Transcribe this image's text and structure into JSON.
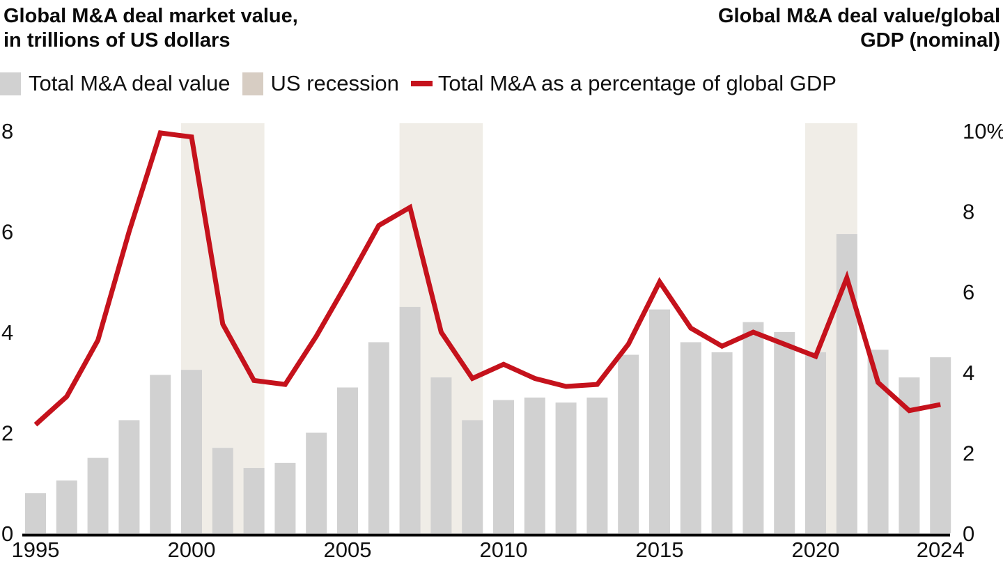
{
  "titles": {
    "left_line1": "Global M&A deal market value,",
    "left_line2": "in trillions of US dollars",
    "right_line1": "Global M&A deal value/global",
    "right_line2": "GDP (nominal)"
  },
  "legend": {
    "items": [
      {
        "label": "Total M&A deal value",
        "swatch": "bar"
      },
      {
        "label": "US recession",
        "swatch": "recession_legend_swatch"
      },
      {
        "label": "Total M&A as a percentage of global GDP",
        "swatch": "line"
      }
    ]
  },
  "chart_data": {
    "type": "bar",
    "title": "Global M&A deal market value, in trillions of US dollars",
    "right_title": "Global M&A deal value/global GDP (nominal)",
    "years": [
      1995,
      1996,
      1997,
      1998,
      1999,
      2000,
      2001,
      2002,
      2003,
      2004,
      2005,
      2006,
      2007,
      2008,
      2009,
      2010,
      2011,
      2012,
      2013,
      2014,
      2015,
      2016,
      2017,
      2018,
      2019,
      2020,
      2021,
      2022,
      2023,
      2024
    ],
    "series": [
      {
        "name": "Total M&A deal value",
        "type": "bar",
        "axis": "left",
        "unit": "trillions of US dollars",
        "values": [
          0.8,
          1.05,
          1.5,
          2.25,
          3.15,
          3.25,
          1.7,
          1.3,
          1.4,
          2.0,
          2.9,
          3.8,
          4.5,
          3.1,
          2.25,
          2.65,
          2.7,
          2.6,
          2.7,
          3.55,
          4.45,
          3.8,
          3.6,
          4.2,
          4.0,
          3.6,
          5.95,
          3.65,
          3.1,
          3.5
        ]
      },
      {
        "name": "Total M&A as a percentage of global GDP",
        "type": "line",
        "axis": "right",
        "unit": "% of global GDP (nominal)",
        "values": [
          2.7,
          3.4,
          4.8,
          7.5,
          9.95,
          9.85,
          5.2,
          3.8,
          3.7,
          4.9,
          6.25,
          7.65,
          8.1,
          5.0,
          3.85,
          4.2,
          3.85,
          3.65,
          3.7,
          4.7,
          6.25,
          5.1,
          4.65,
          5.0,
          4.7,
          4.4,
          6.35,
          3.75,
          3.05,
          3.2
        ]
      }
    ],
    "recessions": [
      {
        "name": "US recession",
        "from": 2000,
        "to": 2002
      },
      {
        "name": "US recession",
        "from": 2007,
        "to": 2009
      },
      {
        "name": "US recession",
        "from": 2020,
        "to": 2021
      }
    ],
    "left_axis": {
      "min": 0,
      "max": 8,
      "ticks": [
        {
          "v": 0,
          "label": "0"
        },
        {
          "v": 2,
          "label": "2"
        },
        {
          "v": 4,
          "label": "4"
        },
        {
          "v": 6,
          "label": "6"
        },
        {
          "v": 8,
          "label": "8"
        }
      ]
    },
    "right_axis": {
      "min": 0,
      "max": 10,
      "ticks": [
        {
          "v": 0,
          "label": "0"
        },
        {
          "v": 2,
          "label": "2"
        },
        {
          "v": 4,
          "label": "4"
        },
        {
          "v": 6,
          "label": "6"
        },
        {
          "v": 8,
          "label": "8"
        },
        {
          "v": 10,
          "label": "10%"
        }
      ]
    },
    "x_ticks": [
      {
        "v": 1995,
        "label": "1995"
      },
      {
        "v": 2000,
        "label": "2000"
      },
      {
        "v": 2005,
        "label": "2005"
      },
      {
        "v": 2010,
        "label": "2010"
      },
      {
        "v": 2015,
        "label": "2015"
      },
      {
        "v": 2020,
        "label": "2020"
      },
      {
        "v": 2024,
        "label": "2024"
      }
    ],
    "grid": false,
    "legend_position": "top",
    "colors": {
      "bar": "#d1d1d1",
      "recession_band": "#f0ede7",
      "recession_legend_swatch": "#d7cdc3",
      "line": "#c5121c",
      "axis": "#000000",
      "text": "#111111",
      "background": "#ffffff"
    }
  }
}
